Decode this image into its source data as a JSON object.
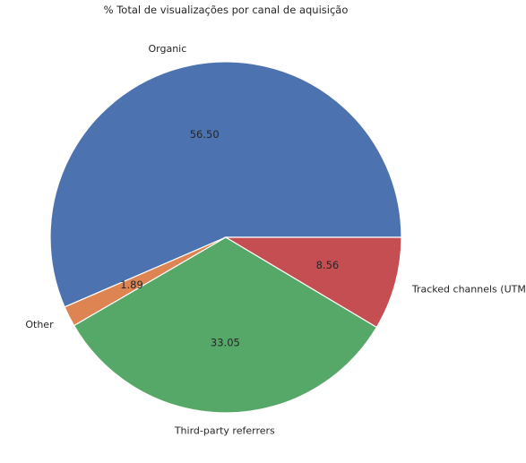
{
  "chart_data": {
    "type": "pie",
    "title": "% Total de visualizações por canal de aquisição",
    "start_angle_deg": 0,
    "direction": "counterclockwise",
    "slices": [
      {
        "label": "Organic",
        "value": 56.5,
        "display": "56.50",
        "color": "#4c72b0"
      },
      {
        "label": "Other",
        "value": 1.89,
        "display": "1.89",
        "color": "#dd8452"
      },
      {
        "label": "Third-party referrers",
        "value": 33.05,
        "display": "33.05",
        "color": "#55a868"
      },
      {
        "label": "Tracked channels (UTM)",
        "value": 8.56,
        "display": "8.56",
        "color": "#c44e52"
      }
    ]
  }
}
